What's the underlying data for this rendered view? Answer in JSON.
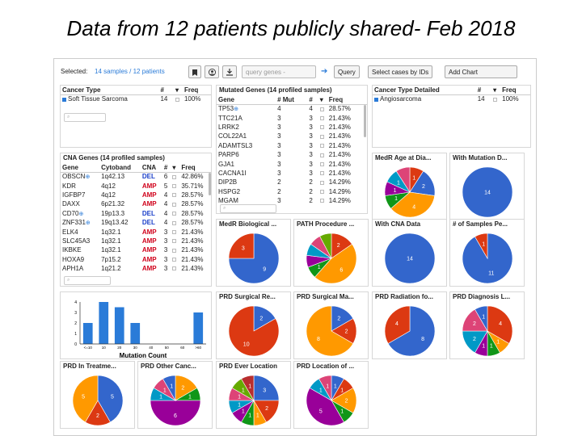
{
  "slide_title": "Data from 12 patients publicly shared- Feb 2018",
  "toolbar": {
    "selected_label": "Selected:",
    "selected_count": "14 samples / 12 patients",
    "bookmark_icon": "bookmark-icon",
    "download_icon": "download-icon",
    "query_placeholder": "query genes -",
    "query_label": "Query",
    "select_ids_label": "Select cases by IDs",
    "add_chart_label": "Add Chart"
  },
  "cancer_type": {
    "headers": [
      "Cancer Type",
      "#",
      "Freq"
    ],
    "rows": [
      [
        "Soft Tissue Sarcoma",
        "14",
        "100%"
      ]
    ]
  },
  "cancer_type_detailed": {
    "headers": [
      "Cancer Type Detailed",
      "#",
      "Freq"
    ],
    "rows": [
      [
        "Angiosarcoma",
        "14",
        "100%"
      ]
    ]
  },
  "mutated_genes": {
    "title": "Mutated Genes (14 profiled samples)",
    "headers": [
      "Gene",
      "# Mut",
      "#",
      "Freq"
    ],
    "rows": [
      [
        "TP53",
        "4",
        "4",
        "28.57%"
      ],
      [
        "TTC21A",
        "3",
        "3",
        "21.43%"
      ],
      [
        "LRRK2",
        "3",
        "3",
        "21.43%"
      ],
      [
        "COL22A1",
        "3",
        "3",
        "21.43%"
      ],
      [
        "ADAMTSL3",
        "3",
        "3",
        "21.43%"
      ],
      [
        "PARP6",
        "3",
        "3",
        "21.43%"
      ],
      [
        "GJA1",
        "3",
        "3",
        "21.43%"
      ],
      [
        "CACNA1I",
        "3",
        "3",
        "21.43%"
      ],
      [
        "DIP2B",
        "2",
        "2",
        "14.29%"
      ],
      [
        "HSPG2",
        "2",
        "2",
        "14.29%"
      ],
      [
        "MGAM",
        "3",
        "2",
        "14.29%"
      ]
    ]
  },
  "cna_genes": {
    "title": "CNA Genes (14 profiled samples)",
    "headers": [
      "Gene",
      "Cytoband",
      "CNA",
      "#",
      "Freq"
    ],
    "rows": [
      [
        "OBSCN",
        "1q42.13",
        "DEL",
        "6",
        "42.86%"
      ],
      [
        "KDR",
        "4q12",
        "AMP",
        "5",
        "35.71%"
      ],
      [
        "IGFBP7",
        "4q12",
        "AMP",
        "4",
        "28.57%"
      ],
      [
        "DAXX",
        "6p21.32",
        "AMP",
        "4",
        "28.57%"
      ],
      [
        "CD70",
        "19p13.3",
        "DEL",
        "4",
        "28.57%"
      ],
      [
        "ZNF331",
        "19q13.42",
        "DEL",
        "4",
        "28.57%"
      ],
      [
        "ELK4",
        "1q32.1",
        "AMP",
        "3",
        "21.43%"
      ],
      [
        "SLC45A3",
        "1q32.1",
        "AMP",
        "3",
        "21.43%"
      ],
      [
        "IKBKE",
        "1q32.1",
        "AMP",
        "3",
        "21.43%"
      ],
      [
        "HOXA9",
        "7p15.2",
        "AMP",
        "3",
        "21.43%"
      ],
      [
        "APH1A",
        "1q21.2",
        "AMP",
        "3",
        "21.43%"
      ]
    ]
  },
  "mutation_count_chart": {
    "title": "Mutation Count",
    "y_ticks": [
      "0",
      "1",
      "2",
      "3",
      "4"
    ],
    "categories": [
      "<=10",
      "10",
      "20",
      "30",
      "40",
      "50",
      "60",
      ">60"
    ],
    "values": [
      2,
      4,
      3.5,
      2,
      0,
      0,
      0,
      3
    ],
    "ylim": [
      0,
      4
    ]
  },
  "pies": [
    {
      "title": "MedR Age at Dia...",
      "slices": [
        {
          "v": 1,
          "c": "#dc3912",
          "l": "1"
        },
        {
          "v": 2,
          "c": "#3366cc",
          "l": "2"
        },
        {
          "v": 4,
          "c": "#ff9900",
          "l": "4"
        },
        {
          "v": 1,
          "c": "#109618",
          "l": "1"
        },
        {
          "v": 1,
          "c": "#990099",
          "l": "1"
        },
        {
          "v": 1,
          "c": "#0099c6",
          "l": "1"
        },
        {
          "v": 1,
          "c": "#dd4477",
          "l": ""
        }
      ]
    },
    {
      "title": "With Mutation D...",
      "slices": [
        {
          "v": 14,
          "c": "#3366cc",
          "l": "14"
        }
      ]
    },
    {
      "title": "MedR Biological ...",
      "slices": [
        {
          "v": 9,
          "c": "#3366cc",
          "l": "9"
        },
        {
          "v": 3,
          "c": "#dc3912",
          "l": "3"
        }
      ]
    },
    {
      "title": "PATH Procedure ...",
      "slices": [
        {
          "v": 2,
          "c": "#dc3912",
          "l": "2"
        },
        {
          "v": 6,
          "c": "#ff9900",
          "l": "6"
        },
        {
          "v": 1,
          "c": "#109618",
          "l": "1"
        },
        {
          "v": 1,
          "c": "#990099",
          "l": ""
        },
        {
          "v": 1,
          "c": "#0099c6",
          "l": ""
        },
        {
          "v": 1,
          "c": "#dd4477",
          "l": ""
        },
        {
          "v": 1,
          "c": "#66aa00",
          "l": ""
        }
      ]
    },
    {
      "title": "With CNA Data",
      "slices": [
        {
          "v": 14,
          "c": "#3366cc",
          "l": "14"
        }
      ]
    },
    {
      "title": "# of Samples Pe...",
      "slices": [
        {
          "v": 11,
          "c": "#3366cc",
          "l": "11"
        },
        {
          "v": 1,
          "c": "#dc3912",
          "l": "1"
        }
      ]
    },
    {
      "title": "PRD Surgical Re...",
      "slices": [
        {
          "v": 2,
          "c": "#3366cc",
          "l": "2"
        },
        {
          "v": 10,
          "c": "#dc3912",
          "l": "10"
        }
      ]
    },
    {
      "title": "PRD Surgical Ma...",
      "slices": [
        {
          "v": 2,
          "c": "#3366cc",
          "l": "2"
        },
        {
          "v": 2,
          "c": "#dc3912",
          "l": "2"
        },
        {
          "v": 8,
          "c": "#ff9900",
          "l": "8"
        }
      ]
    },
    {
      "title": "PRD Radiation fo...",
      "slices": [
        {
          "v": 8,
          "c": "#3366cc",
          "l": "8"
        },
        {
          "v": 4,
          "c": "#dc3912",
          "l": "4"
        }
      ]
    },
    {
      "title": "PRD Diagnosis L...",
      "slices": [
        {
          "v": 4,
          "c": "#dc3912",
          "l": "4"
        },
        {
          "v": 1,
          "c": "#ff9900",
          "l": "1"
        },
        {
          "v": 1,
          "c": "#109618",
          "l": "1"
        },
        {
          "v": 1,
          "c": "#990099",
          "l": "1"
        },
        {
          "v": 2,
          "c": "#0099c6",
          "l": "2"
        },
        {
          "v": 2,
          "c": "#dd4477",
          "l": "2"
        },
        {
          "v": 1,
          "c": "#3366cc",
          "l": "1"
        }
      ]
    },
    {
      "title": "PRD In Treatme...",
      "slices": [
        {
          "v": 5,
          "c": "#3366cc",
          "l": "5"
        },
        {
          "v": 2,
          "c": "#dc3912",
          "l": "2"
        },
        {
          "v": 5,
          "c": "#ff9900",
          "l": "5"
        }
      ]
    },
    {
      "title": "PRD Other Canc...",
      "slices": [
        {
          "v": 2,
          "c": "#ff9900",
          "l": "2"
        },
        {
          "v": 1,
          "c": "#109618",
          "l": "1"
        },
        {
          "v": 6,
          "c": "#990099",
          "l": "6"
        },
        {
          "v": 1,
          "c": "#0099c6",
          "l": "1"
        },
        {
          "v": 1,
          "c": "#dd4477",
          "l": "1"
        },
        {
          "v": 1,
          "c": "#3366cc",
          "l": "1"
        }
      ]
    },
    {
      "title": "PRD Ever Location",
      "slices": [
        {
          "v": 3,
          "c": "#3366cc",
          "l": "3"
        },
        {
          "v": 2,
          "c": "#dc3912",
          "l": "2"
        },
        {
          "v": 1,
          "c": "#ff9900",
          "l": "1"
        },
        {
          "v": 1,
          "c": "#109618",
          "l": "1"
        },
        {
          "v": 1,
          "c": "#990099",
          "l": "1"
        },
        {
          "v": 1,
          "c": "#0099c6",
          "l": "1"
        },
        {
          "v": 1,
          "c": "#dd4477",
          "l": "1"
        },
        {
          "v": 1,
          "c": "#66aa00",
          "l": "1"
        },
        {
          "v": 1,
          "c": "#b82e2e",
          "l": "1"
        }
      ]
    },
    {
      "title": "PRD Location of ...",
      "slices": [
        {
          "v": 1,
          "c": "#3366cc",
          "l": "1"
        },
        {
          "v": 1,
          "c": "#dc3912",
          "l": "1"
        },
        {
          "v": 2,
          "c": "#ff9900",
          "l": "2"
        },
        {
          "v": 1,
          "c": "#109618",
          "l": "1"
        },
        {
          "v": 5,
          "c": "#990099",
          "l": "5"
        },
        {
          "v": 1,
          "c": "#0099c6",
          "l": "1"
        },
        {
          "v": 1,
          "c": "#dd4477",
          "l": "1"
        }
      ]
    }
  ]
}
